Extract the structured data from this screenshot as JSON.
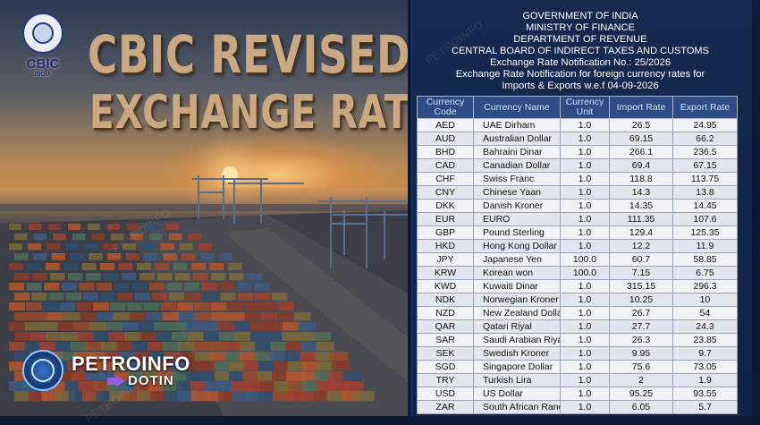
{
  "brand": {
    "cbic_wordmark": "CBIC",
    "cbic_sub": "INDIA",
    "petroinfo_name": "PETROINFO",
    "petroinfo_domain": "DOTIN",
    "watermark": "PETROINFO"
  },
  "headline": {
    "line1": "CBIC REVISED",
    "line2": "EXCHANGE RATES"
  },
  "notice": {
    "line1": "GOVERNMENT OF INDIA",
    "line2": "MINISTRY OF FINANCE",
    "line3": "DEPARTMENT OF REVENUE",
    "line4": "CENTRAL BOARD OF INDIRECT TAXES AND CUSTOMS",
    "line5": "Exchange Rate Notification No.: 25/2026",
    "line6": "Exchange Rate Notification for foreign currency rates for",
    "line7": "Imports & Exports w.e.f 04-09-2026"
  },
  "table": {
    "headers": [
      "Currency Code",
      "Currency Name",
      "Currency Unit",
      "Import Rate",
      "Export Rate"
    ],
    "rows": [
      [
        "AED",
        "UAE Dirham",
        "1.0",
        "26.5",
        "24.95"
      ],
      [
        "AUD",
        "Australian Dollar",
        "1.0",
        "69.15",
        "66.2"
      ],
      [
        "BHD",
        "Bahraini Dinar",
        "1.0",
        "266.1",
        "236.5"
      ],
      [
        "CAD",
        "Canadian Dollar",
        "1.0",
        "69.4",
        "67.15"
      ],
      [
        "CHF",
        "Swiss Franc",
        "1.0",
        "118.8",
        "113.75"
      ],
      [
        "CNY",
        "Chinese Yaan",
        "1.0",
        "14.3",
        "13.8"
      ],
      [
        "DKK",
        "Danish Kroner",
        "1.0",
        "14.35",
        "14.45"
      ],
      [
        "EUR",
        "EURO",
        "1.0",
        "111.35",
        "107.6"
      ],
      [
        "GBP",
        "Pound Sterling",
        "1.0",
        "129.4",
        "125.35"
      ],
      [
        "HKD",
        "Hong Kong Dollar",
        "1.0",
        "12.2",
        "11.9"
      ],
      [
        "JPY",
        "Japanese Yen",
        "100.0",
        "60.7",
        "58.85"
      ],
      [
        "KRW",
        "Korean won",
        "100.0",
        "7.15",
        "6.75"
      ],
      [
        "KWD",
        "Kuwaiti Dinar",
        "1.0",
        "315.15",
        "296.3"
      ],
      [
        "NDK",
        "Norwegian Kroner",
        "1.0",
        "10.25",
        "10"
      ],
      [
        "NZD",
        "New Zealand Dollar",
        "1.0",
        "26.7",
        "54"
      ],
      [
        "QAR",
        "Qatari Riyal",
        "1.0",
        "27.7",
        "24.3"
      ],
      [
        "SAR",
        "Saudi Arabian Riyal",
        "1.0",
        "26.3",
        "23.85"
      ],
      [
        "SEK",
        "Swedish Kroner",
        "1.0",
        "9.95",
        "9.7"
      ],
      [
        "SGD",
        "Singapore Dollar",
        "1.0",
        "75.6",
        "73.05"
      ],
      [
        "TRY",
        "Turkish Lira",
        "1.0",
        "2",
        "1.9"
      ],
      [
        "USD",
        "US Dollar",
        "1.0",
        "95.25",
        "93.55"
      ],
      [
        "ZAR",
        "South African Rand",
        "1.0",
        "6.05",
        "5.7"
      ]
    ]
  },
  "colors": {
    "panel_bg": "#102246",
    "table_header_bg": "#2f4a84",
    "table_header_text": "#cfe0ff",
    "cell_bg": "#f0f2f6",
    "headline_text": "#c9a882",
    "petroinfo_accent": "#9b5de5"
  },
  "icons": [
    "cbic-emblem-icon",
    "petroinfo-globe-icon",
    "arrow-right-icon"
  ]
}
